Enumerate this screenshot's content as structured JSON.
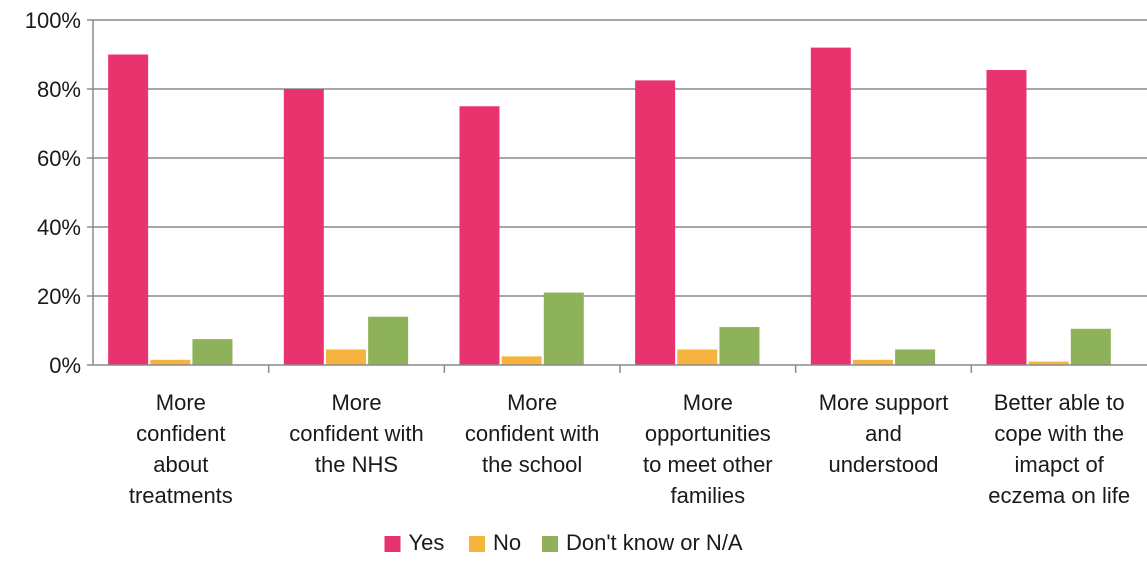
{
  "chart_data": {
    "type": "bar",
    "title": "",
    "xlabel": "",
    "ylabel": "",
    "ylim": [
      0,
      100
    ],
    "y_ticks": [
      "0%",
      "20%",
      "40%",
      "60%",
      "80%",
      "100%"
    ],
    "grid": true,
    "legend_position": "bottom",
    "categories": [
      [
        "More",
        "confident",
        "about",
        "treatments"
      ],
      [
        "More",
        "confident with",
        "the NHS"
      ],
      [
        "More",
        "confident with",
        "the school"
      ],
      [
        "More",
        "opportunities",
        "to meet other",
        "families"
      ],
      [
        "More support",
        "and",
        "understood"
      ],
      [
        "Better able to",
        "cope with the",
        "imapct of",
        "eczema on life"
      ]
    ],
    "series": [
      {
        "name": "Yes",
        "color": "#e8336f",
        "values": [
          90,
          80,
          75,
          82.5,
          92,
          85.5
        ]
      },
      {
        "name": "No",
        "color": "#f6b33e",
        "values": [
          1.5,
          4.5,
          2.5,
          4.5,
          1.5,
          1
        ]
      },
      {
        "name": "Don't know or N/A",
        "color": "#8db25a",
        "values": [
          7.5,
          14,
          21,
          11,
          4.5,
          10.5
        ]
      }
    ]
  }
}
